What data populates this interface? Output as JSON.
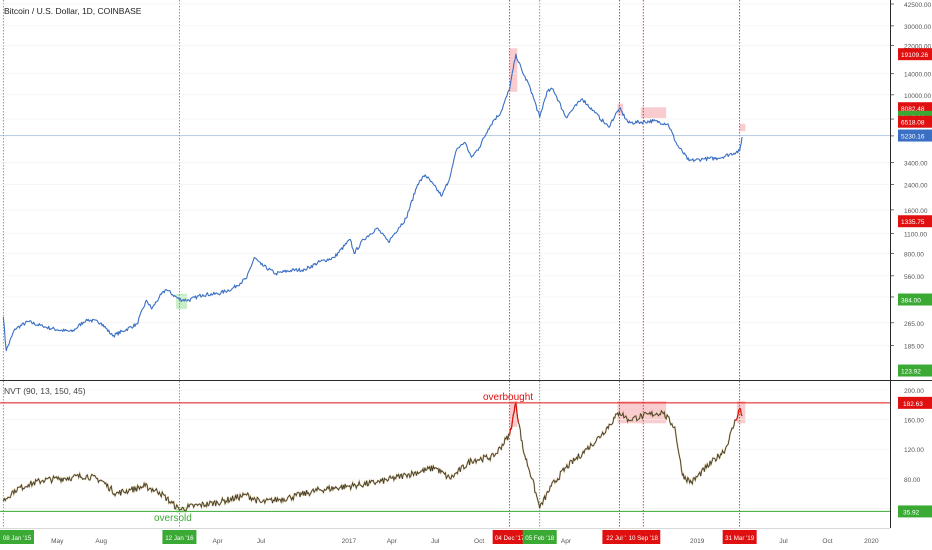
{
  "header": {
    "symbol_title": "Bitcoin / U.S. Dollar, 1D, COINBASE",
    "indicator_title": "NVT (90, 13, 150, 45)"
  },
  "annotations": {
    "overbought": "overbought",
    "oversold": "oversold"
  },
  "colors": {
    "price_line": "#3a6fc4",
    "nvt_line": "#3b3b2f",
    "nvt_line_alt": "#c9a15a",
    "sell_red": "#e01010",
    "buy_green": "#3aaa35",
    "red_zone": "#f4a3a8",
    "green_zone": "#9be09b",
    "current_price_tag": "#3a6fc4"
  },
  "chart_data": [
    {
      "type": "line",
      "title": "Bitcoin / U.S. Dollar, 1D, COINBASE",
      "y_scale": "log",
      "ylim": [
        110,
        42500
      ],
      "y_ticks": [
        "42500.00",
        "30000.00",
        "22000.00",
        "14000.00",
        "10000.00",
        "6800.00",
        "5200.00",
        "3400.00",
        "2400.00",
        "1600.00",
        "1100.00",
        "800.00",
        "560.00",
        "400.00",
        "265.00",
        "185.00"
      ],
      "price_tags": [
        {
          "label": "19109.26",
          "kind": "sell"
        },
        {
          "label": "8082.48",
          "kind": "sell"
        },
        {
          "label": "7047.39",
          "kind": "buy"
        },
        {
          "label": "6518.08",
          "kind": "sell"
        },
        {
          "label": "5230.16",
          "kind": "current"
        },
        {
          "label": "1335.75",
          "kind": "sell"
        },
        {
          "label": "384.00",
          "kind": "buy"
        },
        {
          "label": "123.92",
          "kind": "buy"
        }
      ],
      "series": [
        {
          "x": [
            "2015-01-08",
            "2015-01-14",
            "2015-02-01",
            "2015-03-01",
            "2015-04-01",
            "2015-05-01",
            "2015-06-01",
            "2015-07-01",
            "2015-08-01",
            "2015-08-25",
            "2015-09-15",
            "2015-10-15",
            "2015-11-04",
            "2015-11-15",
            "2015-12-01",
            "2015-12-15",
            "2016-01-12",
            "2016-02-01",
            "2016-03-01",
            "2016-04-01",
            "2016-05-01",
            "2016-06-01",
            "2016-06-17",
            "2016-07-01",
            "2016-08-01",
            "2016-09-01",
            "2016-10-01",
            "2016-11-01",
            "2016-12-01",
            "2017-01-04",
            "2017-01-12",
            "2017-02-01",
            "2017-03-01",
            "2017-03-25",
            "2017-04-15",
            "2017-05-01",
            "2017-05-25",
            "2017-06-10",
            "2017-07-15",
            "2017-08-01",
            "2017-08-15",
            "2017-09-01",
            "2017-09-15",
            "2017-10-01",
            "2017-10-20",
            "2017-11-01",
            "2017-11-15",
            "2017-12-04",
            "2017-12-17",
            "2018-01-01",
            "2018-01-15",
            "2018-02-05",
            "2018-02-20",
            "2018-03-05",
            "2018-04-01",
            "2018-05-05",
            "2018-06-01",
            "2018-06-29",
            "2018-07-22",
            "2018-08-10",
            "2018-09-10",
            "2018-10-01",
            "2018-11-01",
            "2018-11-20",
            "2018-12-15",
            "2019-01-15",
            "2019-02-15",
            "2019-03-31",
            "2019-04-05"
          ],
          "y": [
            290,
            170,
            240,
            270,
            250,
            237,
            230,
            280,
            265,
            215,
            232,
            260,
            380,
            330,
            400,
            450,
            384,
            380,
            415,
            420,
            455,
            540,
            750,
            670,
            580,
            610,
            620,
            700,
            750,
            1000,
            800,
            1000,
            1200,
            960,
            1200,
            1400,
            2400,
            2800,
            2000,
            2700,
            4200,
            4700,
            3700,
            4300,
            5800,
            6700,
            7500,
            11000,
            19109,
            14000,
            11500,
            7000,
            10500,
            11000,
            7000,
            9400,
            7500,
            6000,
            8082,
            6400,
            6500,
            6600,
            6300,
            4500,
            3500,
            3600,
            3650,
            4100,
            5100
          ]
        }
      ]
    },
    {
      "type": "line",
      "title": "NVT (90, 13, 150, 45)",
      "ylim": [
        0,
        200
      ],
      "y_ticks": [
        "0.00",
        "40.00",
        "80.00",
        "120.00",
        "160.00",
        "200.00"
      ],
      "reference_lines": [
        {
          "label": "182.63",
          "value": 182.63,
          "kind": "overbought"
        },
        {
          "label": "35.92",
          "value": 35.92,
          "kind": "oversold"
        }
      ],
      "series": [
        {
          "x": [
            "2015-01-08",
            "2015-02-01",
            "2015-03-01",
            "2015-04-01",
            "2015-05-01",
            "2015-06-01",
            "2015-07-01",
            "2015-08-01",
            "2015-09-01",
            "2015-10-01",
            "2015-11-01",
            "2015-12-01",
            "2016-01-12",
            "2016-02-01",
            "2016-04-01",
            "2016-06-01",
            "2016-07-01",
            "2016-09-01",
            "2016-11-01",
            "2017-01-01",
            "2017-03-01",
            "2017-05-01",
            "2017-07-01",
            "2017-08-01",
            "2017-09-15",
            "2017-11-01",
            "2017-12-04",
            "2017-12-17",
            "2018-01-01",
            "2018-01-20",
            "2018-02-05",
            "2018-03-01",
            "2018-04-01",
            "2018-05-15",
            "2018-06-15",
            "2018-07-22",
            "2018-08-10",
            "2018-09-10",
            "2018-10-20",
            "2018-11-15",
            "2018-12-01",
            "2018-12-20",
            "2019-01-20",
            "2019-03-01",
            "2019-03-31",
            "2019-04-05"
          ],
          "y": [
            50,
            65,
            72,
            78,
            80,
            82,
            84,
            78,
            60,
            65,
            70,
            62,
            38,
            42,
            48,
            58,
            48,
            55,
            65,
            70,
            75,
            85,
            95,
            80,
            105,
            110,
            140,
            182,
            120,
            80,
            40,
            70,
            95,
            120,
            140,
            170,
            160,
            165,
            170,
            150,
            85,
            75,
            95,
            120,
            175,
            165
          ]
        }
      ]
    }
  ],
  "time_axis": {
    "labels": [
      "May",
      "Aug",
      "Apr",
      "Jul",
      "2017",
      "Apr",
      "Jul",
      "Oct",
      "Apr",
      "2019",
      "Jul",
      "Oct",
      "2020"
    ],
    "marker_tags": [
      {
        "label": "08 Jan '15",
        "kind": "buy"
      },
      {
        "label": "12 Jan '16",
        "kind": "buy"
      },
      {
        "label": "04 Dec '17",
        "kind": "sell"
      },
      {
        "label": "05 Feb '18",
        "kind": "buy"
      },
      {
        "label": "22 Jul '18",
        "kind": "sell"
      },
      {
        "label": "10 Sep '18",
        "kind": "sell"
      },
      {
        "label": "31 Mar '19",
        "kind": "sell"
      }
    ]
  }
}
